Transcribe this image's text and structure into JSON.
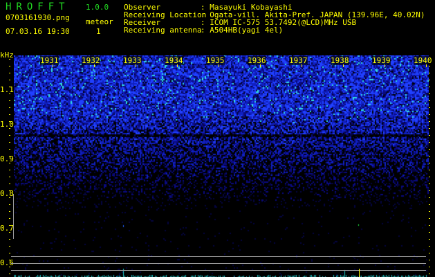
{
  "app": {
    "title": "HROFFT",
    "version": "1.0.0"
  },
  "file": {
    "name": "0703161930.png",
    "datetime": "07.03.16 19:30"
  },
  "meteor": {
    "label": "meteor",
    "count": "1"
  },
  "info": [
    {
      "label": "Observer",
      "value": ": Masayuki Kobayashi"
    },
    {
      "label": "Receiving Location",
      "value": ": Ogata-vill. Akita-Pref. JAPAN (139.96E, 40.02N)"
    },
    {
      "label": "Receiver",
      "value": ": ICOM IC-575 53.7492(@LCD)MHz USB"
    },
    {
      "label": "Receiving antenna",
      "value": ": A504HB(yagi 4el)"
    }
  ],
  "colors": {
    "text": "#ffff00",
    "title": "#22dd22",
    "signal_low": "#0000aa",
    "signal_high": "#00ffcc",
    "marker": "#ffff00"
  },
  "chart_data": {
    "type": "heatmap",
    "ylabel": "kHz",
    "yticks": [
      "1.1",
      "1.0",
      "0.9",
      "0.8",
      "0.7",
      "0.6"
    ],
    "yrange": [
      0.56,
      1.2
    ],
    "xticks": [
      "1931",
      "1932",
      "1933",
      "1934",
      "1935",
      "1936",
      "1937",
      "1938",
      "1939",
      "1940"
    ],
    "reference_lines_khz": [
      0.62,
      0.6,
      0.58
    ],
    "meteor_marker_time": "1937.9",
    "noise_top_khz": 1.2,
    "noise_fade_khz": 0.75
  }
}
